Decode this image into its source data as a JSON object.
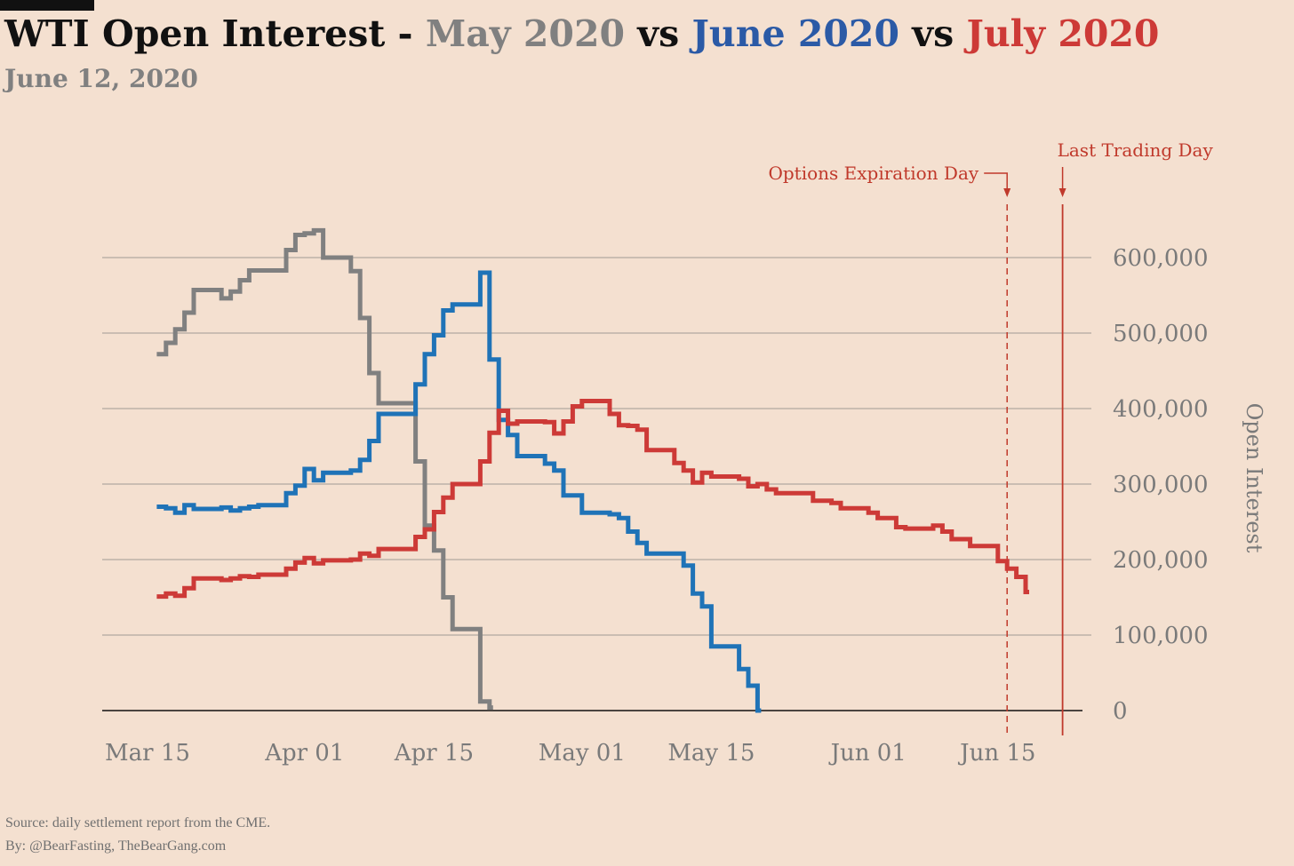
{
  "header": {
    "title_prefix": "WTI Open Interest - ",
    "title_may": "May 2020",
    "title_vs1": " vs ",
    "title_june": "June 2020",
    "title_vs2": " vs ",
    "title_july": "July 2020",
    "subtitle": "June 12, 2020"
  },
  "colors": {
    "background": "#f4e0d0",
    "may": "#808080",
    "june": "#1f73b7",
    "june_title": "#2b5aa6",
    "july": "#cd3a37",
    "annotation": "#c0392b",
    "grid": "#b0a8a0"
  },
  "annotations": {
    "options_expiration": {
      "label": "Options Expiration Day",
      "date": "2020-06-16",
      "style": "dashed"
    },
    "last_trading_day": {
      "label": "Last Trading Day",
      "date": "2020-06-22",
      "style": "solid"
    }
  },
  "footer": {
    "source": "Source: daily settlement report from the CME.",
    "by": "By: @BearFasting, TheBearGang.com"
  },
  "chart_data": {
    "type": "line",
    "step": true,
    "title": "WTI Open Interest - May 2020 vs June 2020 vs July 2020",
    "subtitle": "June 12, 2020",
    "ylabel": "Open Interest",
    "xlabel": "",
    "y_axis_side": "right",
    "ylim": [
      0,
      600000
    ],
    "yticks": [
      0,
      100000,
      200000,
      300000,
      400000,
      500000,
      600000
    ],
    "ytick_labels": [
      "0",
      "100,000",
      "200,000",
      "300,000",
      "400,000",
      "500,000",
      "600,000"
    ],
    "xlim": [
      "2020-03-13",
      "2020-06-25"
    ],
    "xticks": [
      "2020-03-15",
      "2020-04-01",
      "2020-04-15",
      "2020-05-01",
      "2020-05-15",
      "2020-06-01",
      "2020-06-15"
    ],
    "xtick_labels": [
      "Mar 15",
      "Apr 01",
      "Apr 15",
      "May 01",
      "May 15",
      "Jun 01",
      "Jun 15"
    ],
    "grid": "horizontal",
    "legend": "none",
    "series": [
      {
        "name": "May 2020",
        "color": "#808080",
        "points": [
          [
            "2020-03-16",
            472000
          ],
          [
            "2020-03-17",
            487000
          ],
          [
            "2020-03-18",
            505000
          ],
          [
            "2020-03-19",
            527000
          ],
          [
            "2020-03-20",
            557000
          ],
          [
            "2020-03-23",
            546000
          ],
          [
            "2020-03-24",
            555000
          ],
          [
            "2020-03-25",
            570000
          ],
          [
            "2020-03-26",
            583000
          ],
          [
            "2020-03-27",
            583000
          ],
          [
            "2020-03-30",
            610000
          ],
          [
            "2020-03-31",
            630000
          ],
          [
            "2020-04-01",
            632000
          ],
          [
            "2020-04-02",
            636000
          ],
          [
            "2020-04-03",
            600000
          ],
          [
            "2020-04-06",
            582000
          ],
          [
            "2020-04-07",
            520000
          ],
          [
            "2020-04-08",
            447000
          ],
          [
            "2020-04-09",
            407000
          ],
          [
            "2020-04-13",
            330000
          ],
          [
            "2020-04-14",
            245000
          ],
          [
            "2020-04-15",
            212000
          ],
          [
            "2020-04-16",
            150000
          ],
          [
            "2020-04-17",
            108000
          ],
          [
            "2020-04-20",
            12000
          ],
          [
            "2020-04-21",
            4000
          ]
        ]
      },
      {
        "name": "June 2020",
        "color": "#1f73b7",
        "points": [
          [
            "2020-03-16",
            270000
          ],
          [
            "2020-03-17",
            268000
          ],
          [
            "2020-03-18",
            262000
          ],
          [
            "2020-03-19",
            272000
          ],
          [
            "2020-03-20",
            267000
          ],
          [
            "2020-03-23",
            269000
          ],
          [
            "2020-03-24",
            265000
          ],
          [
            "2020-03-25",
            268000
          ],
          [
            "2020-03-26",
            270000
          ],
          [
            "2020-03-27",
            272000
          ],
          [
            "2020-03-30",
            288000
          ],
          [
            "2020-03-31",
            298000
          ],
          [
            "2020-04-01",
            320000
          ],
          [
            "2020-04-02",
            305000
          ],
          [
            "2020-04-03",
            315000
          ],
          [
            "2020-04-06",
            318000
          ],
          [
            "2020-04-07",
            332000
          ],
          [
            "2020-04-08",
            357000
          ],
          [
            "2020-04-09",
            393000
          ],
          [
            "2020-04-13",
            432000
          ],
          [
            "2020-04-14",
            472000
          ],
          [
            "2020-04-15",
            497000
          ],
          [
            "2020-04-16",
            530000
          ],
          [
            "2020-04-17",
            538000
          ],
          [
            "2020-04-20",
            580000
          ],
          [
            "2020-04-21",
            465000
          ],
          [
            "2020-04-22",
            385000
          ],
          [
            "2020-04-23",
            365000
          ],
          [
            "2020-04-24",
            337000
          ],
          [
            "2020-04-27",
            327000
          ],
          [
            "2020-04-28",
            318000
          ],
          [
            "2020-04-29",
            285000
          ],
          [
            "2020-04-30",
            285000
          ],
          [
            "2020-05-01",
            262000
          ],
          [
            "2020-05-04",
            260000
          ],
          [
            "2020-05-05",
            255000
          ],
          [
            "2020-05-06",
            237000
          ],
          [
            "2020-05-07",
            222000
          ],
          [
            "2020-05-08",
            208000
          ],
          [
            "2020-05-11",
            208000
          ],
          [
            "2020-05-12",
            192000
          ],
          [
            "2020-05-13",
            155000
          ],
          [
            "2020-05-14",
            138000
          ],
          [
            "2020-05-15",
            85000
          ],
          [
            "2020-05-18",
            55000
          ],
          [
            "2020-05-19",
            33000
          ],
          [
            "2020-05-20",
            0
          ]
        ]
      },
      {
        "name": "July 2020",
        "color": "#cd3a37",
        "points": [
          [
            "2020-03-16",
            151000
          ],
          [
            "2020-03-17",
            155000
          ],
          [
            "2020-03-18",
            152000
          ],
          [
            "2020-03-19",
            162000
          ],
          [
            "2020-03-20",
            175000
          ],
          [
            "2020-03-23",
            173000
          ],
          [
            "2020-03-24",
            175000
          ],
          [
            "2020-03-25",
            178000
          ],
          [
            "2020-03-26",
            177000
          ],
          [
            "2020-03-27",
            180000
          ],
          [
            "2020-03-30",
            188000
          ],
          [
            "2020-03-31",
            196000
          ],
          [
            "2020-04-01",
            202000
          ],
          [
            "2020-04-02",
            195000
          ],
          [
            "2020-04-03",
            199000
          ],
          [
            "2020-04-06",
            200000
          ],
          [
            "2020-04-07",
            208000
          ],
          [
            "2020-04-08",
            205000
          ],
          [
            "2020-04-09",
            214000
          ],
          [
            "2020-04-13",
            230000
          ],
          [
            "2020-04-14",
            240000
          ],
          [
            "2020-04-15",
            263000
          ],
          [
            "2020-04-16",
            282000
          ],
          [
            "2020-04-17",
            300000
          ],
          [
            "2020-04-20",
            330000
          ],
          [
            "2020-04-21",
            368000
          ],
          [
            "2020-04-22",
            397000
          ],
          [
            "2020-04-23",
            380000
          ],
          [
            "2020-04-24",
            383000
          ],
          [
            "2020-04-27",
            382000
          ],
          [
            "2020-04-28",
            367000
          ],
          [
            "2020-04-29",
            383000
          ],
          [
            "2020-04-30",
            403000
          ],
          [
            "2020-05-01",
            410000
          ],
          [
            "2020-05-04",
            393000
          ],
          [
            "2020-05-05",
            378000
          ],
          [
            "2020-05-06",
            377000
          ],
          [
            "2020-05-07",
            372000
          ],
          [
            "2020-05-08",
            345000
          ],
          [
            "2020-05-11",
            328000
          ],
          [
            "2020-05-12",
            318000
          ],
          [
            "2020-05-13",
            302000
          ],
          [
            "2020-05-14",
            315000
          ],
          [
            "2020-05-15",
            310000
          ],
          [
            "2020-05-18",
            307000
          ],
          [
            "2020-05-19",
            297000
          ],
          [
            "2020-05-20",
            300000
          ],
          [
            "2020-05-21",
            293000
          ],
          [
            "2020-05-22",
            288000
          ],
          [
            "2020-05-26",
            278000
          ],
          [
            "2020-05-27",
            278000
          ],
          [
            "2020-05-28",
            275000
          ],
          [
            "2020-05-29",
            268000
          ],
          [
            "2020-06-01",
            262000
          ],
          [
            "2020-06-02",
            255000
          ],
          [
            "2020-06-03",
            255000
          ],
          [
            "2020-06-04",
            243000
          ],
          [
            "2020-06-05",
            241000
          ],
          [
            "2020-06-08",
            245000
          ],
          [
            "2020-06-09",
            237000
          ],
          [
            "2020-06-10",
            227000
          ],
          [
            "2020-06-11",
            227000
          ],
          [
            "2020-06-12",
            218000
          ],
          [
            "2020-06-15",
            198000
          ],
          [
            "2020-06-16",
            188000
          ],
          [
            "2020-06-17",
            177000
          ],
          [
            "2020-06-18",
            157000
          ]
        ]
      }
    ]
  }
}
